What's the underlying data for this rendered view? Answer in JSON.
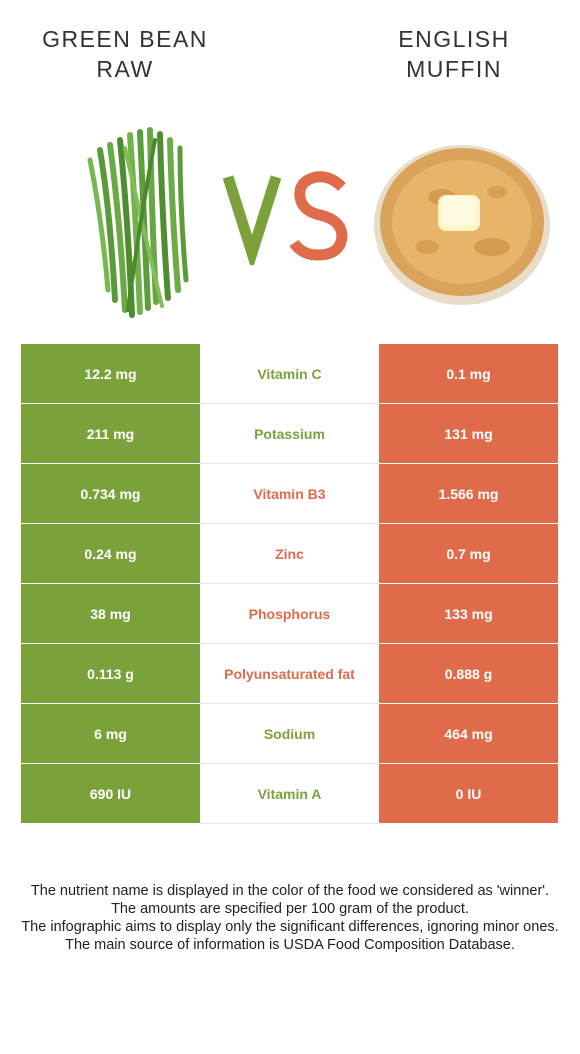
{
  "left_food": {
    "title_line1": "GREEN BEAN",
    "title_line2": "RAW",
    "image_icon": "green-beans-icon",
    "color": "#7ba23a"
  },
  "right_food": {
    "title_line1": "ENGLISH",
    "title_line2": "MUFFIN",
    "image_icon": "english-muffin-icon",
    "color": "#e06b4a"
  },
  "vs": {
    "v_color": "#7ba23a",
    "s_color": "#e06b4a"
  },
  "rows": [
    {
      "left": "12.2 mg",
      "nutrient": "Vitamin C",
      "right": "0.1 mg",
      "winner": "left"
    },
    {
      "left": "211 mg",
      "nutrient": "Potassium",
      "right": "131 mg",
      "winner": "left"
    },
    {
      "left": "0.734 mg",
      "nutrient": "Vitamin B3",
      "right": "1.566 mg",
      "winner": "right"
    },
    {
      "left": "0.24 mg",
      "nutrient": "Zinc",
      "right": "0.7 mg",
      "winner": "right"
    },
    {
      "left": "38 mg",
      "nutrient": "Phosphorus",
      "right": "133 mg",
      "winner": "right"
    },
    {
      "left": "0.113 g",
      "nutrient": "Polyunsaturated fat",
      "right": "0.888 g",
      "winner": "right"
    },
    {
      "left": "6 mg",
      "nutrient": "Sodium",
      "right": "464 mg",
      "winner": "left"
    },
    {
      "left": "690 IU",
      "nutrient": "Vitamin A",
      "right": "0 IU",
      "winner": "left"
    }
  ],
  "footer": [
    "The nutrient name is displayed in the color of the food we considered as 'winner'.",
    "The amounts are specified per 100 gram of the product.",
    "The infographic aims to display only the significant differences, ignoring minor ones.",
    "The main source of information is USDA Food Composition Database."
  ]
}
